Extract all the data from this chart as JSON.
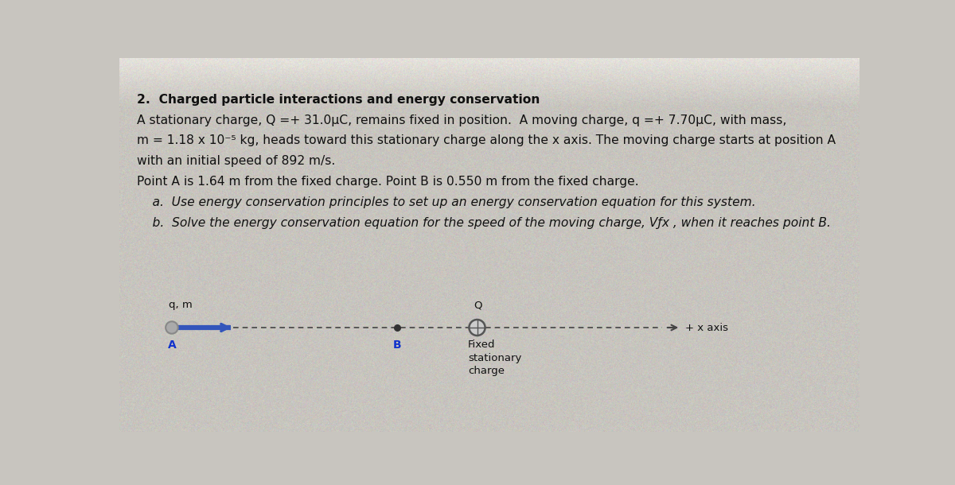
{
  "background_color": "#c8c5bf",
  "background_top_color": "#d8d5cf",
  "title_bold": "2.  Charged particle interactions and energy conservation",
  "line1": "A stationary charge, Q =+ 31.0μC, remains fixed in position.  A moving charge, q =+ 7.70μC, with mass,",
  "line2": "m = 1.18 x 10⁻⁵ kg, heads toward this stationary charge along the x axis. The moving charge starts at position A",
  "line3": "with an initial speed of 892 m/s.",
  "line4": "Point A is 1.64 m from the fixed charge. Point B is 0.550 m from the fixed charge.",
  "line5a": "    a.  Use energy conservation principles to set up an energy conservation equation for this system.",
  "line5b": "    b.  Solve the energy conservation equation for the speed of the moving charge, Vƒx , when it reaches point B.",
  "diagram_label_qm": "q, m",
  "diagram_label_Q": "Q",
  "diagram_label_A": "A",
  "diagram_label_B": "B",
  "diagram_label_fixed": "Fixed\nstationary\ncharge",
  "diagram_label_axis": "+ x axis",
  "arrow_color": "#3355bb",
  "line_color": "#444444",
  "dot_color": "#333333",
  "circle_edge_color": "#333333",
  "text_color": "#111111",
  "label_color_A": "#1133cc",
  "label_color_B": "#1133cc",
  "moving_circle_color": "#888888",
  "fixed_circle_color": "#555555"
}
